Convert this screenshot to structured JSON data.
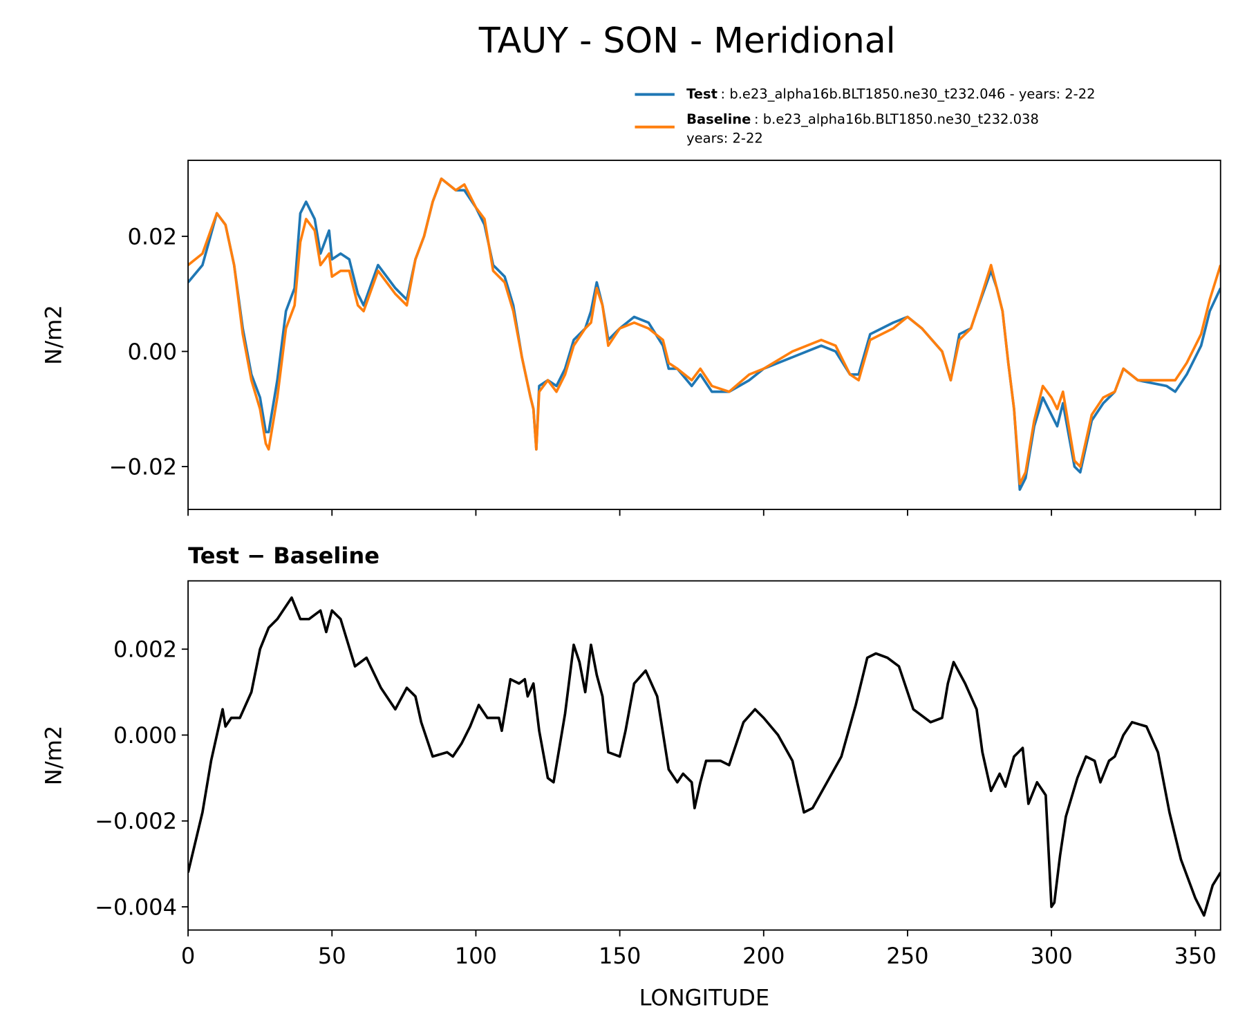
{
  "title": "TAUY - SON - Meridional",
  "chart_data": [
    {
      "type": "line",
      "ylabel": "N/m2",
      "x": [
        0,
        5,
        10,
        13,
        16,
        19,
        22,
        25,
        27,
        28,
        31,
        34,
        37,
        39,
        41,
        44,
        46,
        49,
        50,
        53,
        56,
        59,
        61,
        66,
        72,
        76,
        79,
        82,
        85,
        88,
        93,
        96,
        100,
        103,
        106,
        108,
        110,
        113,
        116,
        119,
        120,
        121,
        122,
        125,
        128,
        131,
        134,
        138,
        140,
        142,
        144,
        146,
        150,
        155,
        160,
        165,
        167,
        170,
        175,
        178,
        182,
        188,
        195,
        200,
        210,
        220,
        225,
        230,
        233,
        237,
        245,
        250,
        255,
        262,
        265,
        268,
        272,
        274,
        279,
        281,
        283,
        285,
        287,
        289,
        291,
        294,
        297,
        300,
        302,
        304,
        308,
        310,
        314,
        318,
        322,
        325,
        330,
        340,
        343,
        347,
        352,
        355,
        358.75
      ],
      "series": [
        {
          "name": "Test",
          "description": [
            ": b.e23_alpha16b.BLT1850.ne30_t232.046 - years: 2-22"
          ],
          "color": "#1f77b4",
          "values": [
            0.012,
            0.015,
            0.024,
            0.022,
            0.015,
            0.004,
            -0.004,
            -0.008,
            -0.014,
            -0.014,
            -0.005,
            0.007,
            0.011,
            0.024,
            0.026,
            0.023,
            0.017,
            0.021,
            0.016,
            0.017,
            0.016,
            0.01,
            0.008,
            0.015,
            0.011,
            0.009,
            0.016,
            0.02,
            0.026,
            0.03,
            0.028,
            0.028,
            0.025,
            0.022,
            0.015,
            0.014,
            0.013,
            0.008,
            -0.001,
            -0.008,
            -0.01,
            -0.017,
            -0.006,
            -0.005,
            -0.006,
            -0.003,
            0.002,
            0.004,
            0.007,
            0.012,
            0.008,
            0.002,
            0.004,
            0.006,
            0.005,
            0.001,
            -0.003,
            -0.003,
            -0.006,
            -0.004,
            -0.007,
            -0.007,
            -0.005,
            -0.003,
            -0.001,
            0.001,
            0.0,
            -0.004,
            -0.004,
            0.003,
            0.005,
            0.006,
            0.004,
            0.0,
            -0.005,
            0.003,
            0.004,
            0.007,
            0.014,
            0.011,
            0.007,
            -0.002,
            -0.01,
            -0.024,
            -0.022,
            -0.013,
            -0.008,
            -0.011,
            -0.013,
            -0.009,
            -0.02,
            -0.021,
            -0.012,
            -0.009,
            -0.007,
            -0.003,
            -0.005,
            -0.006,
            -0.007,
            -0.004,
            0.001,
            0.007,
            0.011
          ]
        },
        {
          "name": "Baseline",
          "description": [
            ": b.e23_alpha16b.BLT1850.ne30_t232.038",
            "years: 2-22"
          ],
          "color": "#ff7f0e",
          "values": [
            0.015,
            0.017,
            0.024,
            0.022,
            0.015,
            0.003,
            -0.005,
            -0.01,
            -0.016,
            -0.017,
            -0.008,
            0.004,
            0.008,
            0.019,
            0.023,
            0.021,
            0.015,
            0.017,
            0.013,
            0.014,
            0.014,
            0.008,
            0.007,
            0.014,
            0.01,
            0.008,
            0.016,
            0.02,
            0.026,
            0.03,
            0.028,
            0.029,
            0.025,
            0.023,
            0.014,
            0.013,
            0.012,
            0.007,
            -0.001,
            -0.008,
            -0.01,
            -0.017,
            -0.007,
            -0.005,
            -0.007,
            -0.004,
            0.001,
            0.004,
            0.005,
            0.011,
            0.008,
            0.001,
            0.004,
            0.005,
            0.004,
            0.002,
            -0.002,
            -0.003,
            -0.005,
            -0.003,
            -0.006,
            -0.007,
            -0.004,
            -0.003,
            0.0,
            0.002,
            0.001,
            -0.004,
            -0.005,
            0.002,
            0.004,
            0.006,
            0.004,
            0.0,
            -0.005,
            0.002,
            0.004,
            0.007,
            0.015,
            0.011,
            0.007,
            -0.002,
            -0.01,
            -0.023,
            -0.021,
            -0.012,
            -0.006,
            -0.008,
            -0.01,
            -0.007,
            -0.019,
            -0.02,
            -0.011,
            -0.008,
            -0.007,
            -0.003,
            -0.005,
            -0.005,
            -0.005,
            -0.002,
            0.003,
            0.009,
            0.015
          ]
        }
      ],
      "xlim": [
        0,
        358.75
      ],
      "xticks": [
        0,
        50,
        100,
        150,
        200,
        250,
        300,
        350
      ],
      "ylim": [
        -0.02745,
        0.0332
      ],
      "yticks": [
        {
          "value": -0.02,
          "label": "−0.02"
        },
        {
          "value": 0,
          "label": "0.00"
        },
        0.02
      ]
    },
    {
      "type": "line",
      "title": "Test − Baseline",
      "ylabel": "N/m2",
      "xlabel": "LONGITUDE",
      "x": [
        0,
        5,
        8,
        12,
        13,
        15,
        18,
        22,
        25,
        28,
        31,
        33,
        36,
        39,
        42,
        46,
        48,
        50,
        53,
        58,
        62,
        67,
        72,
        76,
        79,
        81,
        85,
        90,
        92,
        95,
        98,
        101,
        104,
        108,
        109,
        112,
        115,
        117,
        118,
        120,
        122,
        125,
        127,
        131,
        134,
        136,
        138,
        140,
        142,
        144,
        146,
        150,
        152,
        155,
        159,
        163,
        167,
        170,
        172,
        175,
        176,
        178,
        180,
        185,
        188,
        193,
        197,
        200,
        205,
        210,
        214,
        217,
        222,
        227,
        232,
        236,
        239,
        243,
        247,
        252,
        258,
        262,
        264,
        266,
        270,
        274,
        276,
        279,
        282,
        284,
        287,
        290,
        292,
        295,
        298,
        300,
        301,
        303,
        305,
        309,
        312,
        315,
        317,
        320,
        322,
        325,
        328,
        333,
        337,
        341,
        345,
        350,
        353,
        356,
        358.75
      ],
      "series": [
        {
          "color": "#000000",
          "values": [
            -0.0032,
            -0.0018,
            -0.0006,
            0.0006,
            0.0002,
            0.0004,
            0.0004,
            0.001,
            0.002,
            0.0025,
            0.0027,
            0.0029,
            0.0032,
            0.0027,
            0.0027,
            0.0029,
            0.0024,
            0.0029,
            0.0027,
            0.0016,
            0.0018,
            0.0011,
            0.0006,
            0.0011,
            0.0009,
            0.0003,
            -0.0005,
            -0.0004,
            -0.0005,
            -0.0002,
            0.0002,
            0.0007,
            0.0004,
            0.0004,
            0.0001,
            0.0013,
            0.0012,
            0.0013,
            0.0009,
            0.0012,
            0.0001,
            -0.001,
            -0.0011,
            0.0005,
            0.0021,
            0.0017,
            0.001,
            0.0021,
            0.0014,
            0.0009,
            -0.0004,
            -0.0005,
            0.0001,
            0.0012,
            0.0015,
            0.0009,
            -0.0008,
            -0.0011,
            -0.0009,
            -0.0011,
            -0.0017,
            -0.0011,
            -0.0006,
            -0.0006,
            -0.0007,
            0.0003,
            0.0006,
            0.0004,
            0.0,
            -0.0006,
            -0.0018,
            -0.0017,
            -0.0011,
            -0.0005,
            0.0007,
            0.0018,
            0.0019,
            0.0018,
            0.0016,
            0.0006,
            0.0003,
            0.0004,
            0.0012,
            0.0017,
            0.0012,
            0.0006,
            -0.0004,
            -0.0013,
            -0.0009,
            -0.0012,
            -0.0005,
            -0.0003,
            -0.0016,
            -0.0011,
            -0.0014,
            -0.004,
            -0.0039,
            -0.0028,
            -0.0019,
            -0.001,
            -0.0005,
            -0.0006,
            -0.0011,
            -0.0006,
            -0.0005,
            0.0,
            0.0003,
            0.0002,
            -0.0004,
            -0.0018,
            -0.0029,
            -0.0038,
            -0.0042,
            -0.0035,
            -0.0032
          ]
        }
      ],
      "xlim": [
        0,
        358.75
      ],
      "xticks": [
        0,
        50,
        100,
        150,
        200,
        250,
        300,
        350
      ],
      "ylim": [
        -0.00454,
        0.00359
      ],
      "yticks": [
        {
          "value": -0.004,
          "label": "−0.004"
        },
        {
          "value": -0.002,
          "label": "−0.002"
        },
        {
          "value": 0,
          "label": "0.000"
        },
        0.002
      ]
    }
  ]
}
